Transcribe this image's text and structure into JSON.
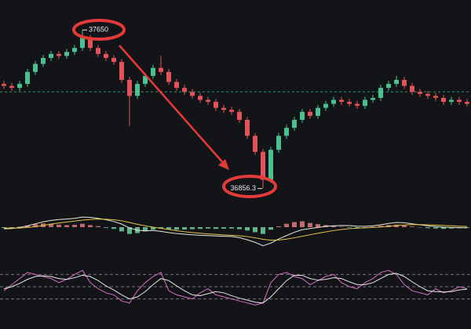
{
  "chart_data": [
    {
      "type": "candlestick",
      "open": [
        37380,
        37370,
        37360,
        37380,
        37440,
        37480,
        37510,
        37530,
        37520,
        37540,
        37560,
        37610,
        37560,
        37530,
        37510,
        37490,
        37400,
        37320,
        37380,
        37420,
        37460,
        37440,
        37390,
        37360,
        37340,
        37320,
        37300,
        37290,
        37260,
        37250,
        37240,
        37200,
        37120,
        37040,
        36900,
        37050,
        37120,
        37160,
        37200,
        37240,
        37220,
        37260,
        37280,
        37300,
        37290,
        37280,
        37270,
        37300,
        37310,
        37360,
        37380,
        37400,
        37370,
        37340,
        37330,
        37320,
        37310,
        37290,
        37300,
        37290
      ],
      "high": [
        37395,
        37385,
        37395,
        37455,
        37495,
        37525,
        37545,
        37545,
        37555,
        37575,
        37650,
        37625,
        37575,
        37545,
        37525,
        37505,
        37415,
        37395,
        37435,
        37475,
        37520,
        37455,
        37405,
        37375,
        37355,
        37335,
        37315,
        37305,
        37275,
        37265,
        37255,
        37215,
        37135,
        37055,
        37065,
        37135,
        37175,
        37215,
        37255,
        37255,
        37275,
        37295,
        37315,
        37315,
        37305,
        37295,
        37315,
        37325,
        37375,
        37395,
        37420,
        37415,
        37385,
        37355,
        37345,
        37335,
        37325,
        37315,
        37315,
        37305
      ],
      "low": [
        37355,
        37345,
        37345,
        37365,
        37425,
        37465,
        37495,
        37505,
        37505,
        37525,
        37545,
        37545,
        37515,
        37495,
        37475,
        37385,
        37170,
        37305,
        37365,
        37405,
        37425,
        37375,
        37345,
        37325,
        37305,
        37285,
        37275,
        37245,
        37235,
        37225,
        37185,
        37105,
        37025,
        36856.3,
        36885,
        37035,
        37105,
        37145,
        37185,
        37205,
        37205,
        37245,
        37265,
        37275,
        37265,
        37255,
        37255,
        37285,
        37295,
        37345,
        37365,
        37355,
        37325,
        37315,
        37305,
        37295,
        37275,
        37275,
        37275,
        37265
      ],
      "close": [
        37370,
        37360,
        37380,
        37440,
        37480,
        37510,
        37530,
        37520,
        37540,
        37560,
        37610,
        37560,
        37530,
        37510,
        37490,
        37400,
        37320,
        37380,
        37420,
        37460,
        37440,
        37390,
        37360,
        37340,
        37320,
        37300,
        37290,
        37260,
        37250,
        37240,
        37200,
        37120,
        37040,
        36900,
        37050,
        37120,
        37160,
        37200,
        37240,
        37220,
        37260,
        37280,
        37300,
        37290,
        37280,
        37270,
        37300,
        37310,
        37360,
        37380,
        37400,
        37370,
        37340,
        37330,
        37320,
        37310,
        37290,
        37300,
        37290,
        37280
      ],
      "up_color": "#4cc08f",
      "down_color": "#e2535b",
      "ylim": [
        36800,
        37800
      ],
      "ref_line": 37340,
      "ref_color": "#3f8f6a"
    },
    {
      "type": "macd",
      "values": [
        -5,
        -8,
        3,
        10,
        18,
        22,
        20,
        15,
        12,
        14,
        20,
        12,
        6,
        -4,
        -10,
        -25,
        -40,
        -35,
        -25,
        -15,
        -8,
        -12,
        -15,
        -14,
        -12,
        -10,
        -8,
        -10,
        -9,
        -8,
        -12,
        -20,
        -30,
        -40,
        -15,
        5,
        20,
        30,
        35,
        25,
        18,
        12,
        8,
        2,
        -3,
        -5,
        -2,
        3,
        8,
        12,
        15,
        10,
        4,
        -2,
        -6,
        -8,
        -10,
        -8,
        -6,
        -4
      ],
      "up_color": "#e07a80",
      "down_color": "#6fcf9f",
      "series": [
        {
          "color": "#e8e8d8",
          "values": [
            -10,
            -8,
            -2,
            8,
            20,
            32,
            40,
            45,
            48,
            52,
            60,
            58,
            52,
            44,
            34,
            18,
            -5,
            -18,
            -22,
            -20,
            -25,
            -32,
            -38,
            -42,
            -45,
            -48,
            -50,
            -52,
            -54,
            -55,
            -62,
            -75,
            -90,
            -110,
            -95,
            -70,
            -50,
            -30,
            -15,
            -8,
            -2,
            5,
            8,
            10,
            9,
            6,
            5,
            8,
            14,
            22,
            28,
            26,
            20,
            14,
            8,
            4,
            0,
            -2,
            -3,
            -4
          ]
        },
        {
          "color": "#e5c547",
          "values": [
            -5,
            -6,
            -5,
            -2,
            3,
            10,
            18,
            25,
            31,
            36,
            42,
            46,
            48,
            47,
            44,
            38,
            28,
            17,
            8,
            0,
            -7,
            -14,
            -21,
            -27,
            -32,
            -36,
            -40,
            -43,
            -46,
            -48,
            -51,
            -56,
            -63,
            -72,
            -77,
            -76,
            -71,
            -63,
            -54,
            -45,
            -36,
            -28,
            -20,
            -14,
            -9,
            -6,
            -4,
            -2,
            1,
            5,
            10,
            13,
            15,
            15,
            14,
            12,
            10,
            8,
            6,
            4
          ]
        }
      ],
      "ylim": [
        -130,
        130
      ]
    },
    {
      "type": "line",
      "series": [
        {
          "color": "#d86fc4",
          "values": [
            40,
            55,
            70,
            85,
            80,
            75,
            70,
            60,
            68,
            80,
            90,
            60,
            45,
            35,
            30,
            15,
            10,
            40,
            60,
            75,
            85,
            40,
            30,
            25,
            20,
            35,
            45,
            30,
            25,
            20,
            15,
            10,
            5,
            10,
            60,
            80,
            85,
            75,
            70,
            55,
            65,
            75,
            80,
            60,
            50,
            45,
            60,
            70,
            85,
            90,
            80,
            55,
            40,
            35,
            30,
            45,
            35,
            40,
            50,
            45
          ]
        },
        {
          "color": "#e6e6e6",
          "values": [
            45,
            50,
            58,
            68,
            75,
            77,
            75,
            70,
            68,
            72,
            78,
            75,
            65,
            52,
            42,
            30,
            20,
            25,
            38,
            55,
            70,
            65,
            52,
            40,
            30,
            28,
            33,
            38,
            35,
            28,
            22,
            17,
            12,
            10,
            25,
            45,
            65,
            78,
            78,
            70,
            66,
            68,
            72,
            70,
            62,
            55,
            55,
            60,
            70,
            80,
            83,
            75,
            62,
            50,
            40,
            38,
            37,
            38,
            42,
            44
          ]
        }
      ],
      "ylim": [
        0,
        100
      ],
      "ref_lines": [
        80,
        50,
        20
      ],
      "ref_color": "#777777"
    }
  ]
}
